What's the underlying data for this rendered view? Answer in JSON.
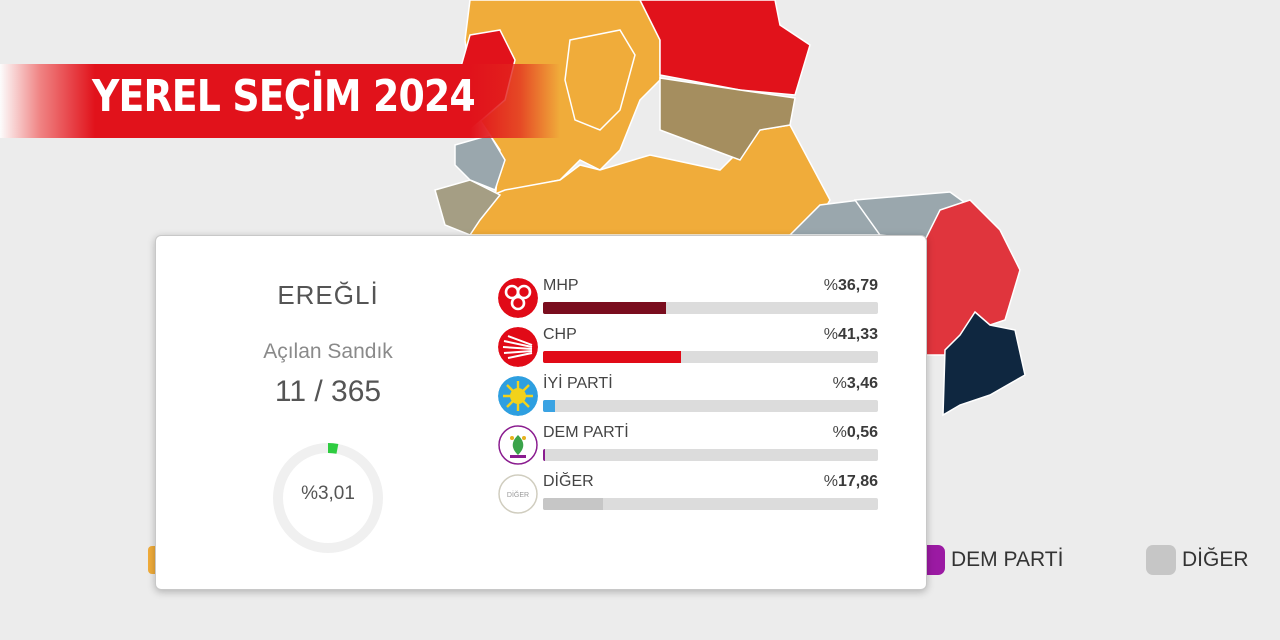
{
  "banner": {
    "title": "YEREL SEÇİM 2024"
  },
  "card": {
    "district": "EREĞLİ",
    "opened_label": "Açılan Sandık",
    "opened_count": "11 / 365",
    "opened_percent_label": "%3,01",
    "opened_percent": 3.01
  },
  "parties": [
    {
      "name": "MHP",
      "prefix": "%",
      "value": "36,79",
      "share": 36.79,
      "color": "#7a0d1e",
      "logo": "mhp-logo-icon"
    },
    {
      "name": "CHP",
      "prefix": "%",
      "value": "41,33",
      "share": 41.33,
      "color": "#e10a17",
      "logo": "chp-logo-icon"
    },
    {
      "name": "İYİ PARTİ",
      "prefix": "%",
      "value": "3,46",
      "share": 3.46,
      "color": "#3aa3e3",
      "logo": "iyi-parti-logo-icon"
    },
    {
      "name": "DEM PARTİ",
      "prefix": "%",
      "value": "0,56",
      "share": 0.56,
      "color": "#8a1c8f",
      "logo": "dem-parti-logo-icon"
    },
    {
      "name": "DİĞER",
      "prefix": "%",
      "value": "17,86",
      "share": 17.86,
      "color": "#c6c6c6",
      "logo": "diger-logo-icon"
    }
  ],
  "logo_text": {
    "diger": "DİĞER"
  },
  "legend": [
    {
      "label": "DEM PARTİ",
      "color": "#9b1aa3"
    },
    {
      "label": "DİĞER",
      "color": "#c6c6c6"
    }
  ],
  "colors": {
    "mhp_region": "#f0ac3a",
    "chp_region": "#e1121b",
    "chp_light_region": "#e0353d",
    "iyi_region": "#9aa7ad",
    "yrp_region": "#a58e5f",
    "dark_region": "#0f2740"
  }
}
